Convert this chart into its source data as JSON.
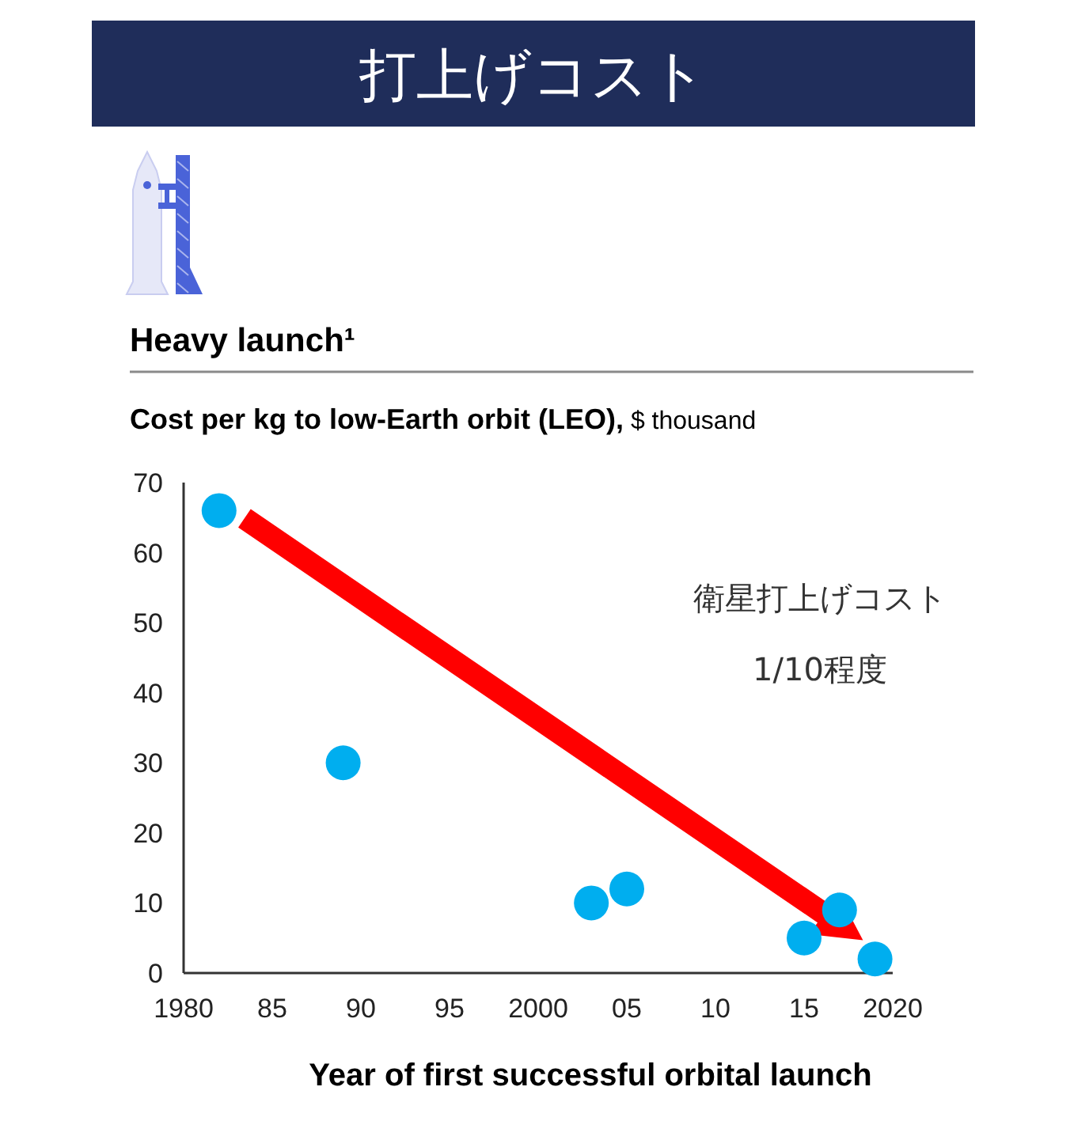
{
  "chart_data": {
    "type": "scatter",
    "title": "打上げコスト",
    "subtitle": "Heavy launch¹",
    "ylabel": "Cost per kg to low-Earth orbit (LEO), $ thousand",
    "xlabel": "Year of first successful orbital launch",
    "x": [
      1982,
      1989,
      2003,
      2005,
      2015,
      2017,
      2019
    ],
    "values": [
      66,
      30,
      10,
      12,
      5,
      9,
      2
    ],
    "color": "#00aeef",
    "marker": "circle",
    "xlim": [
      1980,
      2020
    ],
    "ylim": [
      0,
      70
    ],
    "xticks": [
      1980,
      {
        "value": 1985,
        "label": "85"
      },
      {
        "value": 1990,
        "label": "90"
      },
      {
        "value": 1995,
        "label": "95"
      },
      2000,
      {
        "value": 2005,
        "label": "05"
      },
      {
        "value": 2010,
        "label": "10"
      },
      {
        "value": 2015,
        "label": "15"
      },
      2020
    ],
    "yticks": [
      0,
      10,
      20,
      30,
      40,
      50,
      60,
      70
    ],
    "annotations": [
      "衛星打上げコスト",
      "1/10程度"
    ]
  }
}
